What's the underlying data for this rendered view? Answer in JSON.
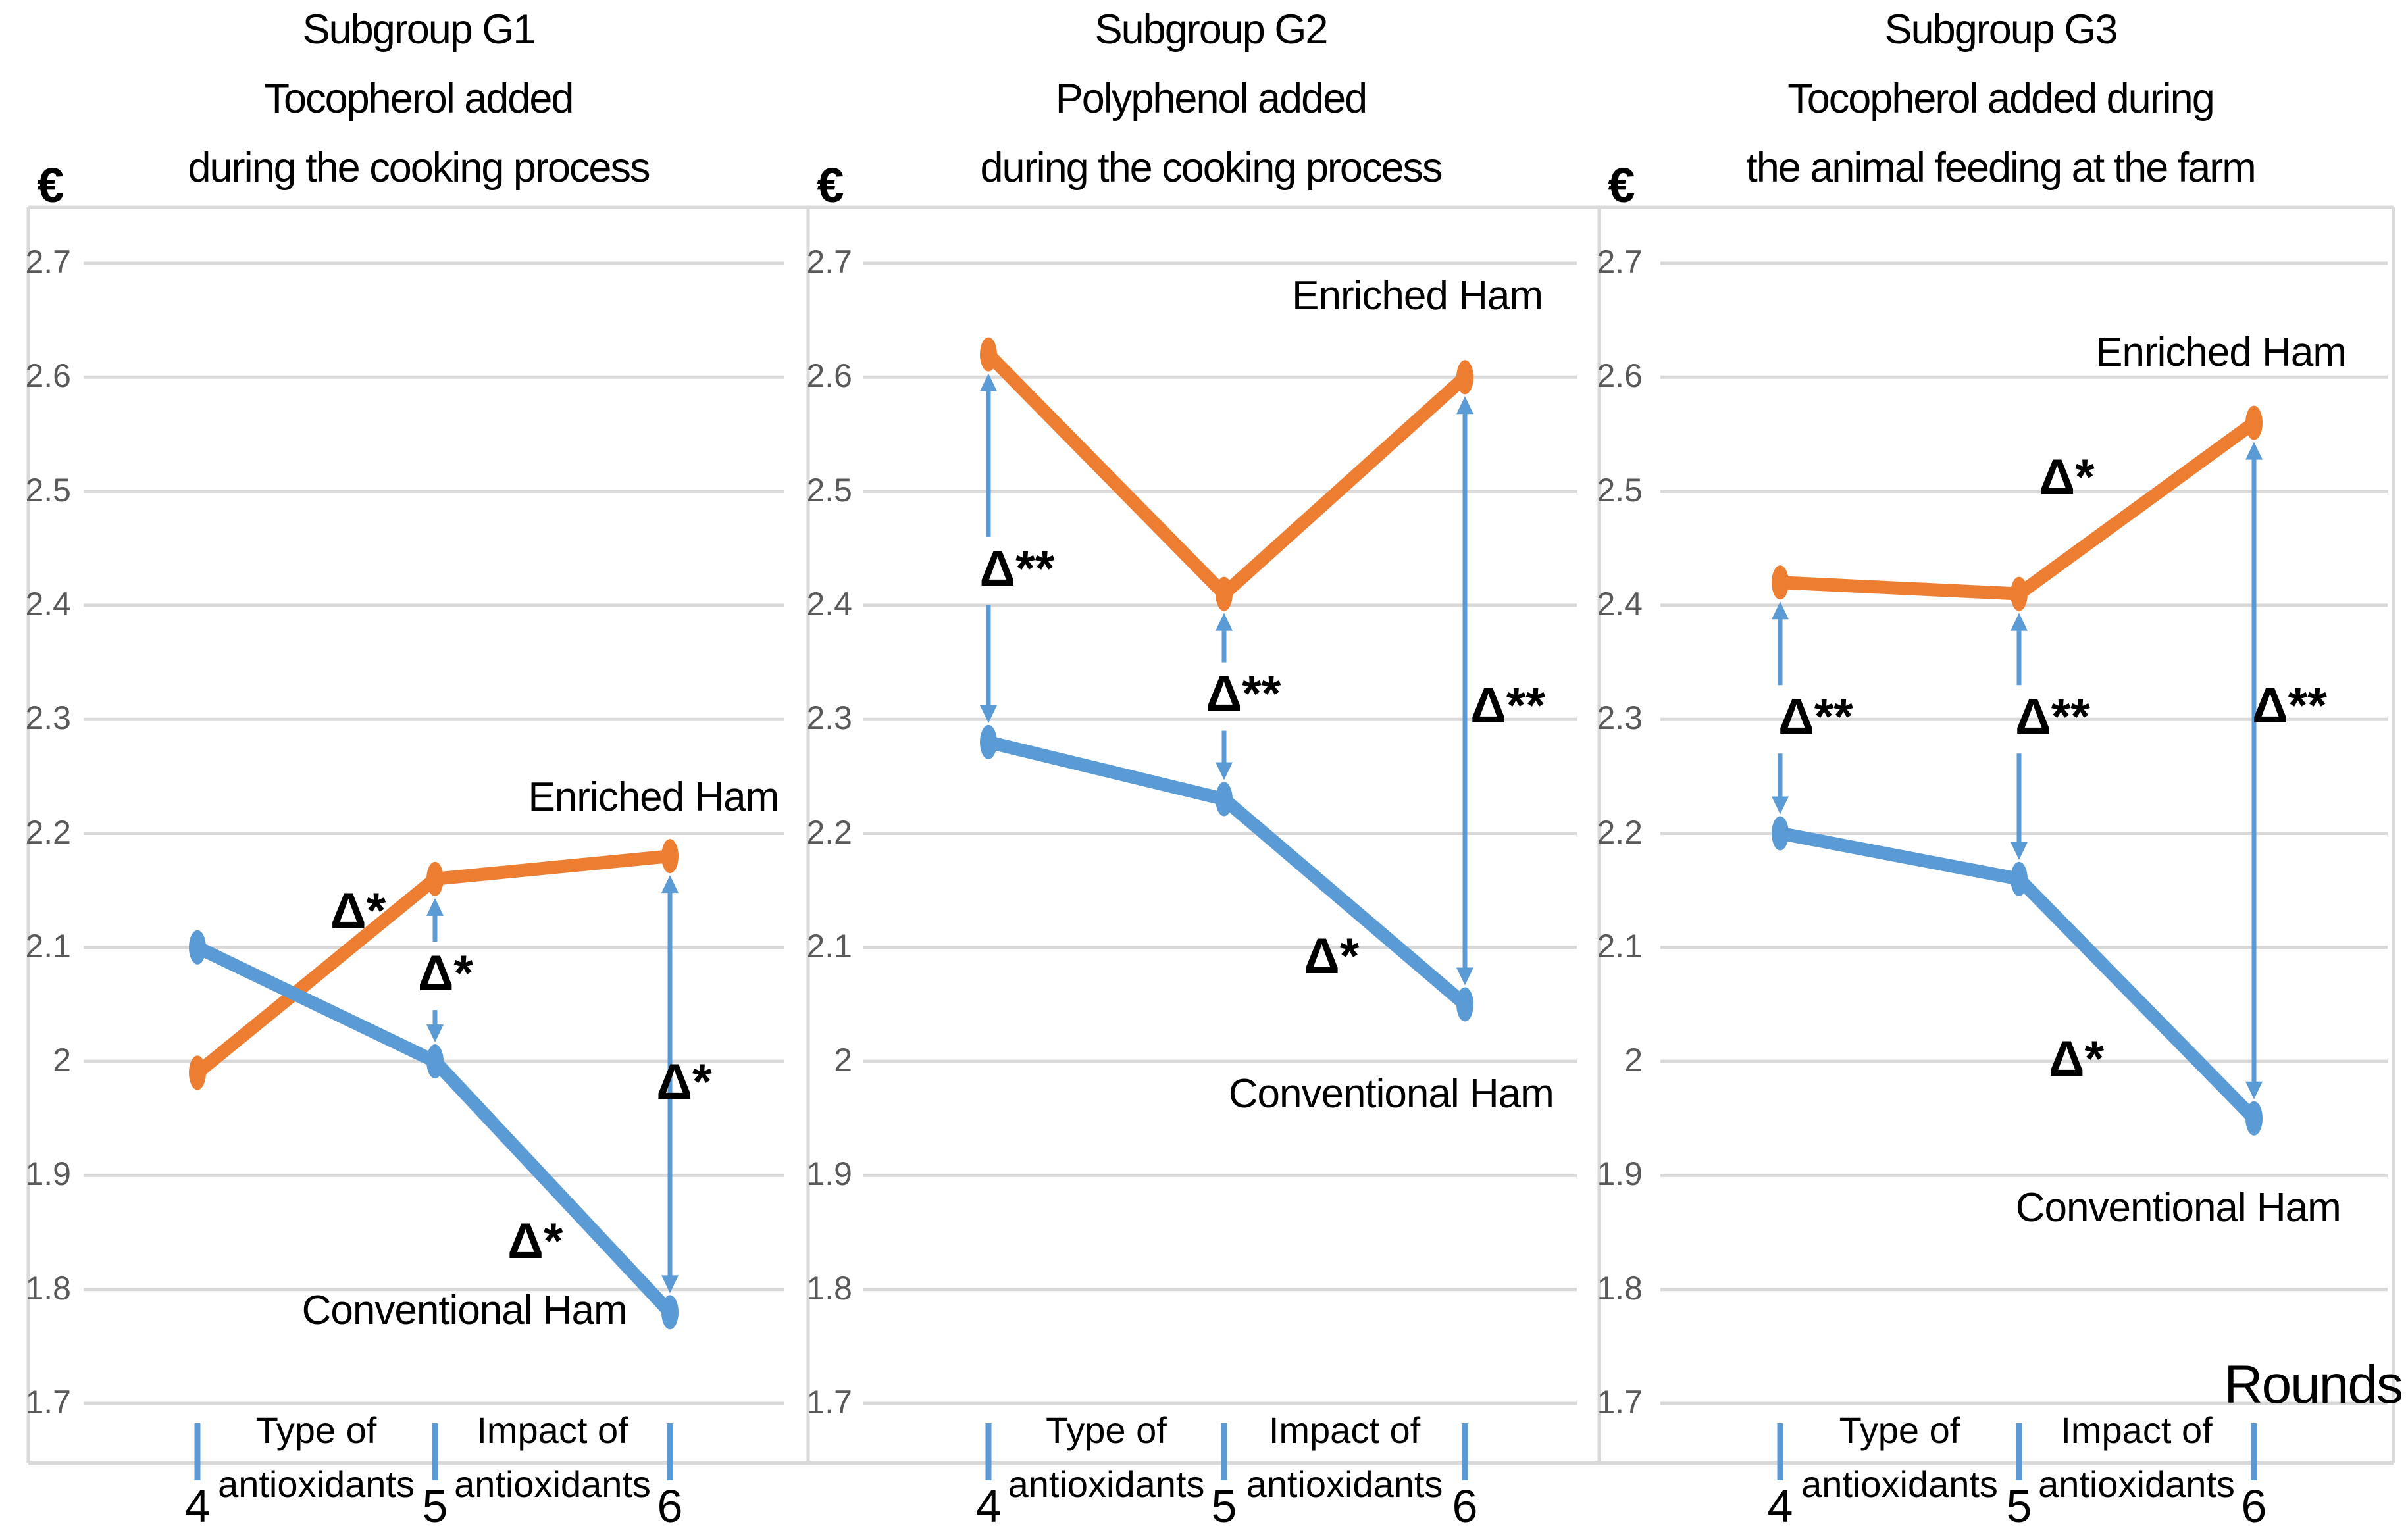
{
  "page": {
    "background": "#ffffff",
    "rounds_axis_label": "Rounds",
    "currency_symbol": "€"
  },
  "colors": {
    "enriched": "#ED7D31",
    "conventional": "#5B9BD5",
    "arrow": "#5B9BD5",
    "gridline": "#D9D9D9",
    "axis_text": "#595959",
    "text": "#000000",
    "tick": "#5B9BD5"
  },
  "chart_data": [
    {
      "type": "line",
      "title_lines": [
        "Subgroup G1",
        "Tocopherol added",
        "during the cooking process"
      ],
      "ylabel": "€",
      "xlabel": "Rounds",
      "x_categories": [
        "4",
        "5",
        "6"
      ],
      "x_interval_labels": [
        [
          "Type of",
          "antioxidants"
        ],
        [
          "Impact of",
          "antioxidants"
        ]
      ],
      "ylim": [
        1.7,
        2.7
      ],
      "ytick_step": 0.1,
      "yticks": [
        "2.7",
        "2.6",
        "2.5",
        "2.4",
        "2.3",
        "2.2",
        "2.1",
        "2",
        "1.9",
        "1.8",
        "1.7"
      ],
      "grid": true,
      "series": [
        {
          "name": "Enriched Ham",
          "values": [
            1.99,
            2.16,
            2.18
          ],
          "label_pos": {
            "x": 1.93,
            "y": 2.23
          }
        },
        {
          "name": "Conventional Ham",
          "values": [
            2.1,
            2.0,
            1.78
          ],
          "label_pos": {
            "x": 1.13,
            "y": 1.78
          }
        }
      ],
      "annotations": [
        {
          "type": "label",
          "text": "Δ*",
          "x": 0.68,
          "y": 2.13
        },
        {
          "type": "arrow",
          "text": "Δ*",
          "round": 1,
          "style": "split",
          "x": 1.05,
          "y": 2.075
        },
        {
          "type": "label",
          "text": "Δ*",
          "x": 1.43,
          "y": 1.84
        },
        {
          "type": "arrow",
          "text": "Δ*",
          "round": 2,
          "style": "continuous",
          "x": 2.06,
          "y": 1.98
        }
      ]
    },
    {
      "type": "line",
      "title_lines": [
        "Subgroup G2",
        "Polyphenol added",
        "during the cooking process"
      ],
      "ylabel": "€",
      "xlabel": "Rounds",
      "x_categories": [
        "4",
        "5",
        "6"
      ],
      "x_interval_labels": [
        [
          "Type of",
          "antioxidants"
        ],
        [
          "Impact of",
          "antioxidants"
        ]
      ],
      "ylim": [
        1.7,
        2.7
      ],
      "ytick_step": 0.1,
      "yticks": [
        "2.7",
        "2.6",
        "2.5",
        "2.4",
        "2.3",
        "2.2",
        "2.1",
        "2",
        "1.9",
        "1.8",
        "1.7"
      ],
      "grid": true,
      "series": [
        {
          "name": "Enriched Ham",
          "values": [
            2.62,
            2.41,
            2.6
          ],
          "label_pos": {
            "x": 1.8,
            "y": 2.67
          }
        },
        {
          "name": "Conventional Ham",
          "values": [
            2.28,
            2.23,
            2.05
          ],
          "label_pos": {
            "x": 1.69,
            "y": 1.97
          }
        }
      ],
      "annotations": [
        {
          "type": "arrow",
          "text": "Δ**",
          "round": 0,
          "style": "split",
          "x": 0.12,
          "y": 2.43
        },
        {
          "type": "arrow",
          "text": "Δ**",
          "round": 1,
          "style": "split",
          "x": 1.07,
          "y": 2.32
        },
        {
          "type": "arrow",
          "text": "Δ**",
          "round": 2,
          "style": "continuous",
          "x": 2.18,
          "y": 2.31
        },
        {
          "type": "label",
          "text": "Δ*",
          "x": 1.44,
          "y": 2.09
        }
      ]
    },
    {
      "type": "line",
      "title_lines": [
        "Subgroup G3",
        "Tocopherol added during",
        "the animal feeding at the farm"
      ],
      "ylabel": "€",
      "xlabel": "Rounds",
      "x_categories": [
        "4",
        "5",
        "6"
      ],
      "x_interval_labels": [
        [
          "Type of",
          "antioxidants"
        ],
        [
          "Impact of",
          "antioxidants"
        ]
      ],
      "ylim": [
        1.7,
        2.7
      ],
      "ytick_step": 0.1,
      "yticks": [
        "2.7",
        "2.6",
        "2.5",
        "2.4",
        "2.3",
        "2.2",
        "2.1",
        "2",
        "1.9",
        "1.8",
        "1.7"
      ],
      "grid": true,
      "series": [
        {
          "name": "Enriched Ham",
          "values": [
            2.42,
            2.41,
            2.56
          ],
          "label_pos": {
            "x": 1.86,
            "y": 2.62
          }
        },
        {
          "name": "Conventional Ham",
          "values": [
            2.2,
            2.16,
            1.95
          ],
          "label_pos": {
            "x": 1.68,
            "y": 1.87
          }
        }
      ],
      "annotations": [
        {
          "type": "arrow",
          "text": "Δ**",
          "round": 0,
          "style": "split",
          "x": 0.15,
          "y": 2.3
        },
        {
          "type": "arrow",
          "text": "Δ**",
          "round": 1,
          "style": "split",
          "x": 1.15,
          "y": 2.3
        },
        {
          "type": "arrow",
          "text": "Δ**",
          "round": 2,
          "style": "continuous",
          "x": 2.15,
          "y": 2.31
        },
        {
          "type": "label",
          "text": "Δ*",
          "x": 1.21,
          "y": 2.51
        },
        {
          "type": "label",
          "text": "Δ*",
          "x": 1.25,
          "y": 2.0
        }
      ]
    }
  ]
}
